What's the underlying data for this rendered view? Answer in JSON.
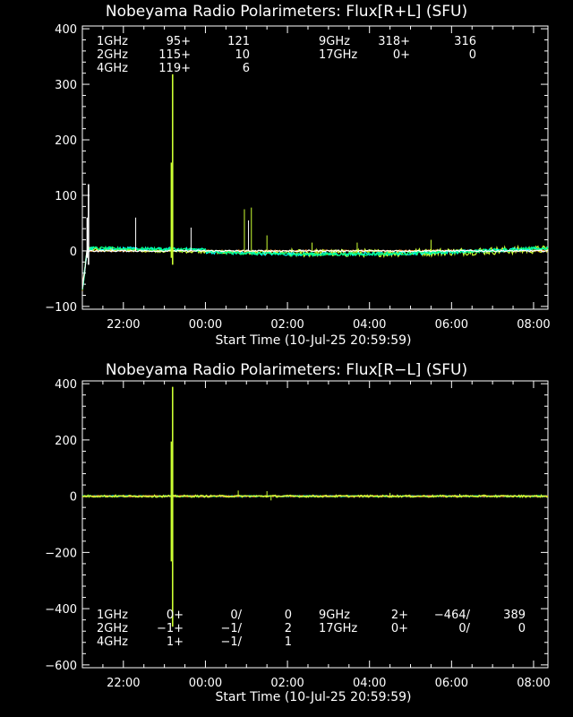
{
  "chart_data": [
    {
      "type": "line",
      "title": "Nobeyama Radio Polarimeters: Flux[R+L] (SFU)",
      "xlabel": "Start Time (10-Jul-25 20:59:59)",
      "x_ticks": [
        "22:00",
        "00:00",
        "02:00",
        "04:00",
        "06:00",
        "08:00"
      ],
      "x_tick_hours": [
        1.0,
        3.0,
        5.0,
        7.0,
        9.0,
        11.0
      ],
      "xlim_hours": [
        0,
        11.35
      ],
      "y_ticks": [
        "400",
        "300",
        "200",
        "100",
        "0",
        "−100"
      ],
      "y_tick_values": [
        400,
        300,
        200,
        100,
        0,
        -100
      ],
      "ylim": [
        -105,
        405
      ],
      "series": [
        {
          "name": "1GHz",
          "color": "#ffffff",
          "values": [
            "95+",
            "121"
          ],
          "peak_hour": 0.15,
          "peak_value": 120
        },
        {
          "name": "2GHz",
          "color": "#00ffff",
          "values": [
            "115+",
            "10"
          ]
        },
        {
          "name": "4GHz",
          "color": "#00ff7f",
          "values": [
            "119+",
            "6"
          ]
        },
        {
          "name": "9GHz",
          "color": "#ccff33",
          "values": [
            "318+",
            "316"
          ],
          "peak_hour": 2.2,
          "peak_value": 318
        },
        {
          "name": "17GHz",
          "color": "#ff9933",
          "values": [
            "0+",
            "0"
          ]
        }
      ]
    },
    {
      "type": "line",
      "title": "Nobeyama Radio Polarimeters: Flux[R−L] (SFU)",
      "xlabel": "Start Time (10-Jul-25 20:59:59)",
      "x_ticks": [
        "22:00",
        "00:00",
        "02:00",
        "04:00",
        "06:00",
        "08:00"
      ],
      "x_tick_hours": [
        1.0,
        3.0,
        5.0,
        7.0,
        9.0,
        11.0
      ],
      "xlim_hours": [
        0,
        11.35
      ],
      "y_ticks": [
        "400",
        "200",
        "0",
        "−200",
        "−400",
        "−600"
      ],
      "y_tick_values": [
        400,
        200,
        0,
        -200,
        -400,
        -600
      ],
      "ylim": [
        -610,
        410
      ],
      "series": [
        {
          "name": "1GHz",
          "color": "#ffffff",
          "values": [
            "0+",
            "0/",
            "0"
          ]
        },
        {
          "name": "2GHz",
          "color": "#00ffff",
          "values": [
            "−1+",
            "−1/",
            "2"
          ]
        },
        {
          "name": "4GHz",
          "color": "#00ff7f",
          "values": [
            "1+",
            "−1/",
            "1"
          ]
        },
        {
          "name": "9GHz",
          "color": "#ccff33",
          "values": [
            "2+",
            "−464/",
            "389"
          ],
          "peak_hour": 2.2,
          "peak_value": 389,
          "trough_value": -464
        },
        {
          "name": "17GHz",
          "color": "#ff9933",
          "values": [
            "0+",
            "0/",
            "0"
          ]
        }
      ]
    }
  ]
}
